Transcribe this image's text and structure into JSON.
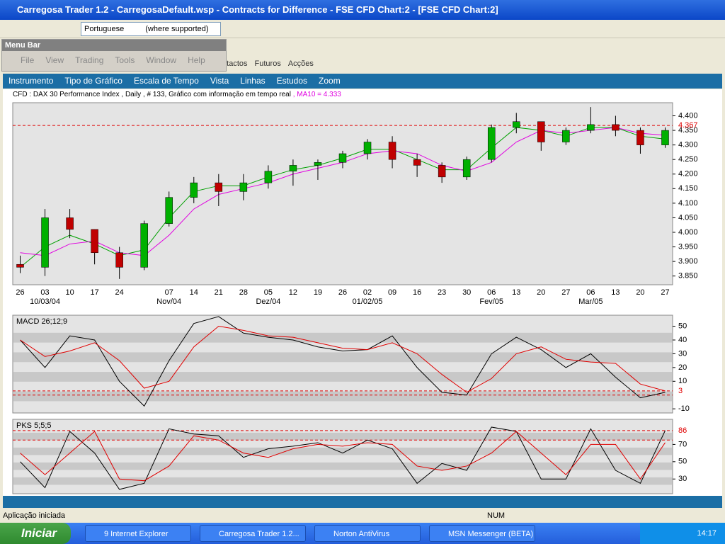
{
  "window": {
    "title": "Carregosa Trader 1.2 - CarregosaDefault.wsp - Contracts for Difference - FSE CFD Chart:2 - [FSE CFD Chart:2]"
  },
  "toolbar": {
    "language": "Portuguese",
    "hint": "(where supported)"
  },
  "menu_bar": {
    "title": "Menu Bar",
    "items": [
      "File",
      "View",
      "Trading",
      "Tools",
      "Window",
      "Help"
    ]
  },
  "tabs": [
    "Contactos",
    "Futuros",
    "Acções"
  ],
  "chart_menu": [
    "Instrumento",
    "Tipo de Gráfico",
    "Escala de Tempo",
    "Vista",
    "Linhas",
    "Estudos",
    "Zoom"
  ],
  "chart_header": {
    "info": "CFD : DAX 30 Performance Index , Daily , # 133, Gráfico com informação em tempo real",
    "ma_label": ", MA10 = 4.333"
  },
  "chart_data": [
    {
      "type": "candlestick",
      "categories": [
        "26",
        "03",
        "10",
        "17",
        "24",
        null,
        "07",
        "14",
        "21",
        "28",
        "05",
        "12",
        "19",
        "26",
        "02",
        "09",
        "16",
        "23",
        "30",
        "06",
        "13",
        "20",
        "27",
        "06",
        "13",
        "20",
        "27"
      ],
      "period_labels": [
        {
          "value": 1,
          "label": "10/03/04"
        },
        {
          "value": 6,
          "label": "Nov/04"
        },
        {
          "value": 10,
          "label": "Dez/04"
        },
        {
          "value": 14,
          "label": "01/02/05"
        },
        {
          "value": 19,
          "label": "Fev/05"
        },
        {
          "value": 23,
          "label": "Mar/05"
        }
      ],
      "open": [
        3890,
        3880,
        4050,
        4010,
        3930,
        3880,
        4030,
        4120,
        4170,
        4140,
        4170,
        4210,
        4230,
        4240,
        4270,
        4310,
        4250,
        4230,
        4190,
        4250,
        4360,
        4380,
        4310,
        4350,
        4370,
        4350,
        4300
      ],
      "high": [
        3920,
        4080,
        4080,
        4010,
        3950,
        4040,
        4140,
        4190,
        4200,
        4200,
        4230,
        4250,
        4250,
        4280,
        4320,
        4330,
        4270,
        4240,
        4260,
        4370,
        4410,
        4380,
        4360,
        4430,
        4400,
        4360,
        4360
      ],
      "low": [
        3860,
        3850,
        3980,
        3890,
        3840,
        3870,
        4020,
        4100,
        4090,
        4110,
        4150,
        4160,
        4180,
        4220,
        4250,
        4220,
        4190,
        4170,
        4180,
        4240,
        4340,
        4280,
        4300,
        4340,
        4330,
        4270,
        4290
      ],
      "close": [
        3880,
        4050,
        4010,
        3930,
        3880,
        4030,
        4120,
        4170,
        4140,
        4170,
        4210,
        4230,
        4240,
        4270,
        4310,
        4250,
        4230,
        4190,
        4250,
        4360,
        4380,
        4310,
        4350,
        4370,
        4350,
        4300,
        4350
      ],
      "up_color": "#00b000",
      "down_color": "#c00000",
      "lines": [
        {
          "color": "#00a000",
          "values": [
            3880,
            3950,
            3990,
            3960,
            3920,
            3940,
            4050,
            4140,
            4160,
            4160,
            4190,
            4215,
            4230,
            4255,
            4285,
            4285,
            4250,
            4215,
            4215,
            4290,
            4360,
            4350,
            4330,
            4360,
            4360,
            4330,
            4320
          ]
        },
        {
          "color": "#e000e0",
          "values": [
            3930,
            3920,
            3960,
            3970,
            3930,
            3920,
            3990,
            4080,
            4130,
            4150,
            4170,
            4200,
            4220,
            4240,
            4270,
            4280,
            4270,
            4230,
            4210,
            4240,
            4310,
            4350,
            4340,
            4350,
            4360,
            4340,
            4333
          ]
        }
      ],
      "ylim": [
        3820,
        4445
      ],
      "yticks": [
        {
          "value": 3850,
          "label": "3.850"
        },
        {
          "value": 3900,
          "label": "3.900"
        },
        {
          "value": 3950,
          "label": "3.950"
        },
        {
          "value": 4000,
          "label": "4.000"
        },
        {
          "value": 4050,
          "label": "4.050"
        },
        {
          "value": 4100,
          "label": "4.100"
        },
        {
          "value": 4150,
          "label": "4.150"
        },
        {
          "value": 4200,
          "label": "4.200"
        },
        {
          "value": 4250,
          "label": "4.250"
        },
        {
          "value": 4300,
          "label": "4.300"
        },
        {
          "value": 4350,
          "label": "4.350"
        },
        {
          "value": 4400,
          "label": "4.400"
        }
      ],
      "ref_lines": [
        {
          "value": 4367,
          "label": "4.367"
        }
      ],
      "ref_color": "#e00000"
    },
    {
      "type": "line",
      "title": "MACD 26;12;9",
      "series": [
        {
          "color": "#000000",
          "values": [
            40,
            20,
            43,
            40,
            10,
            -8,
            25,
            52,
            57,
            45,
            42,
            40,
            35,
            32,
            33,
            43,
            20,
            2,
            0,
            30,
            42,
            33,
            20,
            30,
            13,
            -2,
            2
          ]
        },
        {
          "color": "#e00000",
          "values": [
            40,
            28,
            32,
            38,
            25,
            5,
            10,
            35,
            50,
            47,
            43,
            42,
            38,
            34,
            33,
            38,
            30,
            15,
            2,
            12,
            30,
            35,
            26,
            24,
            23,
            8,
            3
          ]
        }
      ],
      "ylim": [
        -13,
        58
      ],
      "yticks": [
        -10,
        10,
        20,
        30,
        40,
        50
      ],
      "ref_lines": [
        3,
        0
      ],
      "ref_color": "#e00000"
    },
    {
      "type": "line",
      "title": "PKS 5;5;5",
      "series": [
        {
          "color": "#000000",
          "values": [
            50,
            20,
            85,
            60,
            18,
            25,
            88,
            82,
            80,
            55,
            65,
            68,
            72,
            60,
            75,
            65,
            25,
            48,
            40,
            90,
            85,
            30,
            30,
            88,
            40,
            25,
            86
          ]
        },
        {
          "color": "#e00000",
          "values": [
            60,
            35,
            60,
            85,
            30,
            28,
            45,
            80,
            75,
            60,
            55,
            65,
            70,
            68,
            72,
            70,
            45,
            40,
            45,
            60,
            85,
            60,
            35,
            70,
            70,
            30,
            72
          ]
        }
      ],
      "ylim": [
        13,
        99
      ],
      "yticks": [
        30,
        50,
        70
      ],
      "ref_lines": [
        86,
        75
      ],
      "ref_color": "#e00000"
    }
  ],
  "status": {
    "message": "Aplicação iniciada",
    "num": "NUM"
  },
  "taskbar": {
    "start": "Iniciar",
    "items": [
      "9 Internet Explorer",
      "Carregosa Trader 1.2...",
      "Norton AntiVirus",
      "MSN Messenger (BETA)"
    ],
    "clock": "14:17"
  }
}
